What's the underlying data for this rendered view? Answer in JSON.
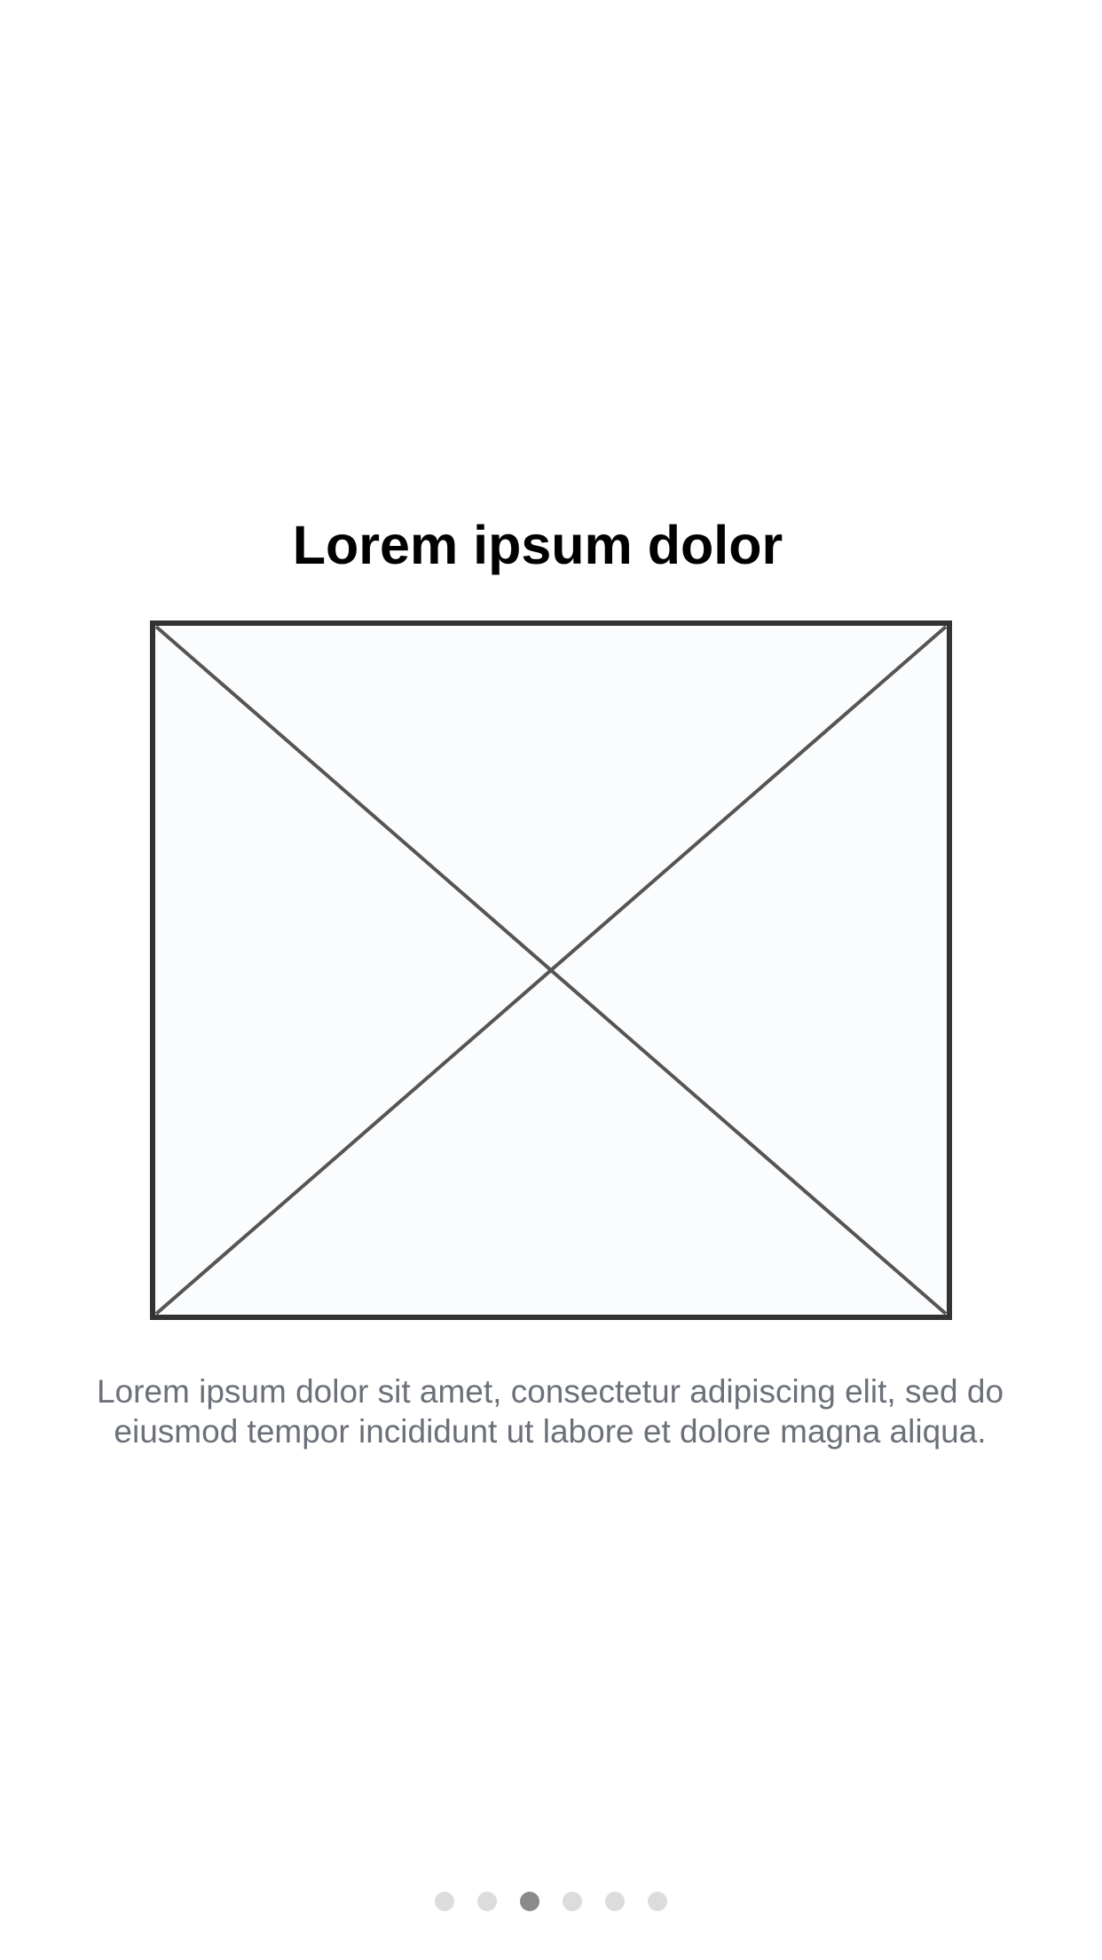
{
  "onboarding": {
    "title": "Lorem ipsum dolor",
    "image_icon": "image-placeholder-icon",
    "description_lines": [
      "Lorem ipsum dolor sit amet, consectetur adipiscing elit, sed do",
      "eiusmod tempor incididunt ut labore et dolore magna aliqua."
    ]
  },
  "pager": {
    "page_count": 6,
    "active_page": 3
  },
  "colors": {
    "dot_inactive": "#dcdcdc",
    "dot_active": "#8a8a8a",
    "description_text": "#6b7079",
    "placeholder_stroke": "#333333",
    "placeholder_fill": "#fbfcfe"
  }
}
